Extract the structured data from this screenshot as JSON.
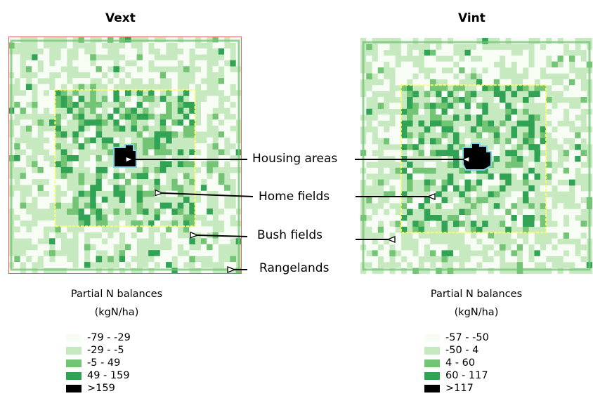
{
  "panels": [
    {
      "title": "Vext",
      "legend_title_line1": "Partial N balances",
      "legend_title_line2": "(kgN/ha)",
      "classes": [
        {
          "label": "-79 - -29",
          "color": "#f7fcf5"
        },
        {
          "label": "-29 - -5",
          "color": "#c7e9c0"
        },
        {
          "label": "-5 - 49",
          "color": "#74c476"
        },
        {
          "label": "49 - 159",
          "color": "#31a354"
        },
        {
          "label": ">159",
          "color": "#000000"
        }
      ]
    },
    {
      "title": "Vint",
      "legend_title_line1": "Partial N balances",
      "legend_title_line2": "(kgN/ha)",
      "classes": [
        {
          "label": "-57 - -50",
          "color": "#f7fcf5"
        },
        {
          "label": "-50 - 4",
          "color": "#c7e9c0"
        },
        {
          "label": "4 - 60",
          "color": "#74c476"
        },
        {
          "label": "60 - 117",
          "color": "#31a354"
        },
        {
          "label": ">117",
          "color": "#000000"
        }
      ]
    }
  ],
  "zones": {
    "housing": "Housing areas",
    "home": "Home fields",
    "bush": "Bush fields",
    "range": "Rangelands"
  },
  "colors": {
    "home_field_boundary": "#ffff66",
    "housing_outline": "#7fd6e8",
    "vext_frame": "#e06060"
  }
}
